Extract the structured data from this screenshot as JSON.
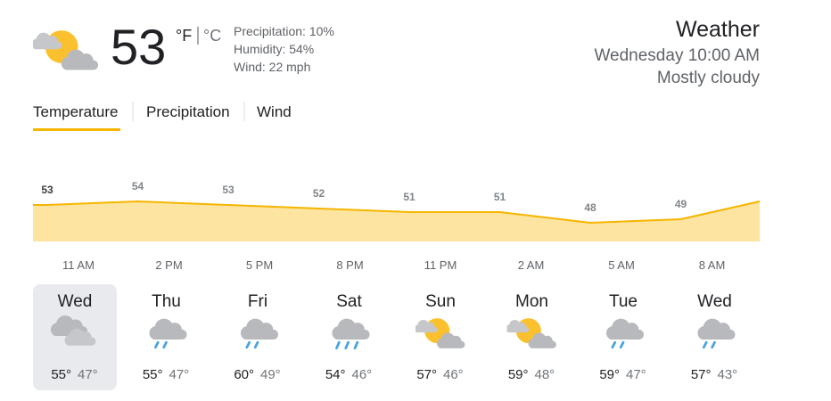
{
  "current": {
    "temperature": "53",
    "unit_f": "°F",
    "unit_c": "°C",
    "precipitation": "Precipitation: 10%",
    "humidity": "Humidity: 54%",
    "wind": "Wind: 22 mph"
  },
  "header": {
    "title": "Weather",
    "time": "Wednesday 10:00 AM",
    "condition": "Mostly cloudy"
  },
  "tabs": [
    "Temperature",
    "Precipitation",
    "Wind"
  ],
  "chart_data": {
    "type": "area",
    "categories": [
      "11 AM",
      "2 PM",
      "5 PM",
      "8 PM",
      "11 PM",
      "2 AM",
      "5 AM",
      "8 AM"
    ],
    "values": [
      53,
      54,
      53,
      52,
      51,
      51,
      48,
      49
    ],
    "color": "#f6b500",
    "fill": "#fde4a0"
  },
  "days": [
    {
      "name": "Wed",
      "high": "55°",
      "low": "47°"
    },
    {
      "name": "Thu",
      "high": "55°",
      "low": "47°"
    },
    {
      "name": "Fri",
      "high": "60°",
      "low": "49°"
    },
    {
      "name": "Sat",
      "high": "54°",
      "low": "46°"
    },
    {
      "name": "Sun",
      "high": "57°",
      "low": "46°"
    },
    {
      "name": "Mon",
      "high": "59°",
      "low": "48°"
    },
    {
      "name": "Tue",
      "high": "59°",
      "low": "47°"
    },
    {
      "name": "Wed",
      "high": "57°",
      "low": "43°"
    }
  ]
}
